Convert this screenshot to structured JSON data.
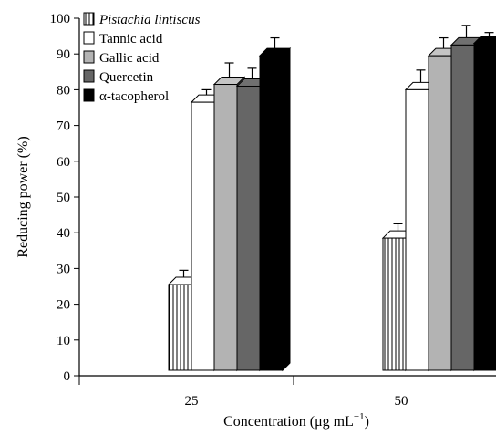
{
  "chart_data": {
    "type": "bar",
    "categories": [
      "25",
      "50"
    ],
    "series": [
      {
        "name": "Pistachia lintiscus",
        "values": [
          25.5,
          38.5
        ],
        "errors": [
          4,
          4
        ],
        "color": "#ffffff",
        "pattern": "vertical-stripes"
      },
      {
        "name": "Tannic acid",
        "values": [
          76.5,
          80
        ],
        "errors": [
          3.5,
          5.5
        ],
        "color": "#ffffff",
        "pattern": "none"
      },
      {
        "name": "Gallic acid",
        "values": [
          81.5,
          89.5
        ],
        "errors": [
          6,
          5
        ],
        "color": "#b3b3b3",
        "pattern": "none"
      },
      {
        "name": "Quercetin",
        "values": [
          81,
          92.5
        ],
        "errors": [
          5,
          5.5
        ],
        "color": "#666666",
        "pattern": "none"
      },
      {
        "name": "α-tacopherol",
        "values": [
          89.5,
          93
        ],
        "errors": [
          5,
          3
        ],
        "color": "#000000",
        "pattern": "none"
      }
    ],
    "ylabel": "Reducing power (%)",
    "xlabel": "Concentration (μg mL",
    "xlabel_superscript": "−1",
    "xlabel_suffix": ")",
    "ylim": [
      0,
      100
    ],
    "yticks": [
      "0",
      "10",
      "20",
      "30",
      "40",
      "50",
      "60",
      "70",
      "80",
      "90",
      "100"
    ],
    "grid": false,
    "legend_position": "top-left"
  }
}
